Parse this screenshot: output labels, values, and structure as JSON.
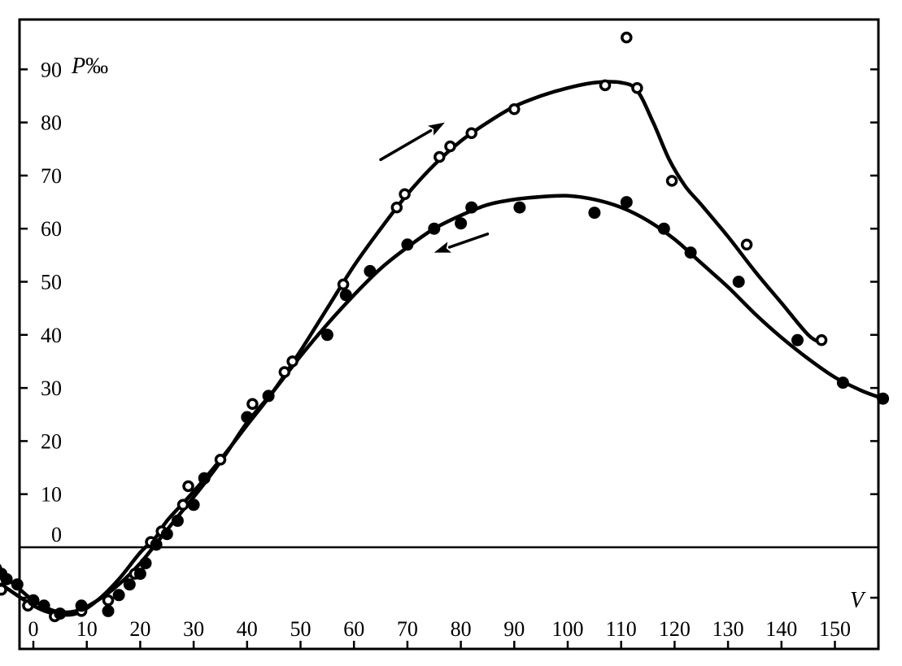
{
  "chart_data": {
    "type": "scatter",
    "xlabel": "V",
    "ylabel": "P‰",
    "ylabel_prefix": "P",
    "ylabel_unit": "‰",
    "xlim": [
      -7,
      160
    ],
    "ylim": [
      -13,
      97
    ],
    "x_ticks": [
      0,
      10,
      20,
      30,
      40,
      50,
      60,
      70,
      80,
      90,
      100,
      110,
      120,
      130,
      140,
      150
    ],
    "x_tick_labels": [
      "0",
      "10",
      "20",
      "30",
      "40",
      "50",
      "60",
      "70",
      "80",
      "90",
      "100",
      "110",
      "120",
      "130",
      "140",
      "150"
    ],
    "y_ticks": [
      0,
      10,
      20,
      30,
      40,
      50,
      60,
      70,
      80,
      90
    ],
    "y_tick_labels": [
      "0",
      "10",
      "20",
      "30",
      "40",
      "50",
      "60",
      "70",
      "80",
      "90"
    ],
    "zero_line": true,
    "grid": false,
    "series": [
      {
        "marker": "open-circle",
        "direction": "increasing",
        "points": [
          [
            -6,
            -8
          ],
          [
            -1,
            -11
          ],
          [
            4,
            -13
          ],
          [
            9,
            -12
          ],
          [
            14,
            -10
          ],
          [
            19,
            -5
          ],
          [
            22,
            1
          ],
          [
            24,
            3
          ],
          [
            28,
            8
          ],
          [
            29,
            11.5
          ],
          [
            35,
            16.5
          ],
          [
            41,
            27
          ],
          [
            47,
            33
          ],
          [
            48.5,
            35
          ],
          [
            58,
            49.5
          ],
          [
            68,
            64
          ],
          [
            69.5,
            66.5
          ],
          [
            76,
            73.5
          ],
          [
            78,
            75.5
          ],
          [
            82,
            78
          ],
          [
            90,
            82.5
          ],
          [
            107,
            87
          ],
          [
            111,
            96
          ],
          [
            113,
            86.5
          ],
          [
            119.5,
            69
          ],
          [
            133.5,
            57
          ],
          [
            147.5,
            39
          ]
        ],
        "curve": [
          [
            -6,
            -7
          ],
          [
            0,
            -11
          ],
          [
            4,
            -12.5
          ],
          [
            8,
            -12.5
          ],
          [
            12,
            -10
          ],
          [
            16,
            -6
          ],
          [
            20,
            -1
          ],
          [
            23,
            2
          ],
          [
            25,
            5
          ],
          [
            30,
            10.5
          ],
          [
            35,
            16.5
          ],
          [
            40,
            23
          ],
          [
            45,
            29.5
          ],
          [
            50,
            37
          ],
          [
            55,
            45
          ],
          [
            60,
            53
          ],
          [
            65,
            60
          ],
          [
            70,
            66.5
          ],
          [
            75,
            72
          ],
          [
            80,
            76.5
          ],
          [
            85,
            80
          ],
          [
            90,
            83
          ],
          [
            95,
            85
          ],
          [
            100,
            86.5
          ],
          [
            105,
            87.5
          ],
          [
            110,
            87.5
          ],
          [
            113,
            86
          ],
          [
            116,
            80
          ],
          [
            119,
            73
          ],
          [
            122,
            68
          ],
          [
            125,
            64.5
          ],
          [
            130,
            58.5
          ],
          [
            135,
            52
          ],
          [
            140,
            46
          ],
          [
            145,
            40
          ],
          [
            147.5,
            38.5
          ]
        ]
      },
      {
        "marker": "filled-circle",
        "direction": "decreasing",
        "points": [
          [
            -7,
            -4
          ],
          [
            -6,
            -5
          ],
          [
            -5,
            -6
          ],
          [
            -3,
            -7
          ],
          [
            0,
            -10
          ],
          [
            2,
            -11
          ],
          [
            5,
            -12.5
          ],
          [
            9,
            -11
          ],
          [
            14,
            -12
          ],
          [
            16,
            -9
          ],
          [
            18,
            -7
          ],
          [
            20,
            -5
          ],
          [
            21,
            -3
          ],
          [
            23,
            0.5
          ],
          [
            25,
            2.5
          ],
          [
            27,
            5
          ],
          [
            30,
            8
          ],
          [
            32,
            13
          ],
          [
            40,
            24.5
          ],
          [
            44,
            28.5
          ],
          [
            55,
            40
          ],
          [
            58.5,
            47.5
          ],
          [
            63,
            52
          ],
          [
            70,
            57
          ],
          [
            75,
            60
          ],
          [
            80,
            61
          ],
          [
            82,
            64
          ],
          [
            91,
            64
          ],
          [
            105,
            63
          ],
          [
            111,
            65
          ],
          [
            118,
            60
          ],
          [
            123,
            55.5
          ],
          [
            132,
            50
          ],
          [
            143,
            39
          ],
          [
            151.5,
            31
          ],
          [
            159,
            28
          ]
        ],
        "curve": [
          [
            -7,
            -4
          ],
          [
            -3,
            -7.5
          ],
          [
            0,
            -10
          ],
          [
            4,
            -12
          ],
          [
            8,
            -12
          ],
          [
            12,
            -10
          ],
          [
            16,
            -7
          ],
          [
            20,
            -3
          ],
          [
            24,
            2
          ],
          [
            28,
            7
          ],
          [
            32,
            12
          ],
          [
            36,
            17.5
          ],
          [
            40,
            23.5
          ],
          [
            45,
            29.5
          ],
          [
            50,
            36
          ],
          [
            55,
            42
          ],
          [
            60,
            47.5
          ],
          [
            65,
            52.5
          ],
          [
            70,
            56.5
          ],
          [
            75,
            60
          ],
          [
            80,
            62.5
          ],
          [
            85,
            64.5
          ],
          [
            90,
            65.5
          ],
          [
            95,
            66
          ],
          [
            100,
            66.2
          ],
          [
            105,
            65.5
          ],
          [
            110,
            64
          ],
          [
            115,
            61.5
          ],
          [
            120,
            58
          ],
          [
            125,
            53.5
          ],
          [
            130,
            49
          ],
          [
            135,
            44
          ],
          [
            140,
            39.5
          ],
          [
            145,
            35.5
          ],
          [
            150,
            32
          ],
          [
            155,
            29.5
          ],
          [
            159,
            28
          ]
        ]
      }
    ],
    "arrows": [
      {
        "direction": "up-right",
        "from": [
          65,
          73
        ],
        "to": [
          77,
          80
        ]
      },
      {
        "direction": "down-left",
        "from": [
          85,
          59
        ],
        "to": [
          75,
          55.5
        ]
      }
    ]
  }
}
